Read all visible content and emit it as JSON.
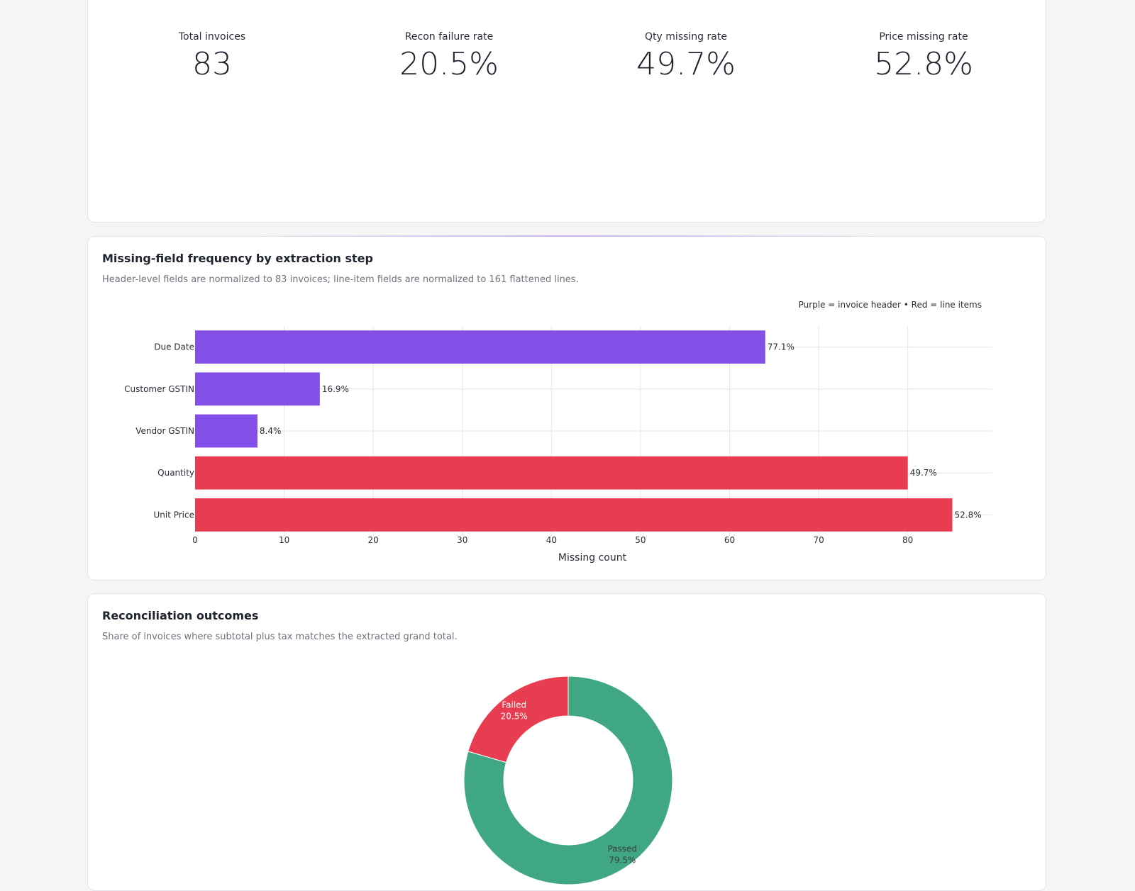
{
  "kpis": [
    {
      "label": "Total invoices",
      "value": "83"
    },
    {
      "label": "Recon failure rate",
      "value": "20.5%"
    },
    {
      "label": "Qty missing rate",
      "value": "49.7%"
    },
    {
      "label": "Price missing rate",
      "value": "52.8%"
    }
  ],
  "bar_section": {
    "title": "Missing-field frequency by extraction step",
    "subtitle": "Header-level fields are normalized to 83 invoices; line-item fields are normalized to 161 flattened lines."
  },
  "donut_section": {
    "title": "Reconciliation outcomes",
    "subtitle": "Share of invoices where subtotal plus tax matches the extracted grand total."
  },
  "chart_data": [
    {
      "type": "bar",
      "orientation": "horizontal",
      "categories": [
        "Due Date",
        "Customer GSTIN",
        "Vendor GSTIN",
        "Quantity",
        "Unit Price"
      ],
      "values": [
        64,
        14,
        7,
        80,
        85
      ],
      "data_labels": [
        "77.1%",
        "16.9%",
        "8.4%",
        "49.7%",
        "52.8%"
      ],
      "groups": [
        "header",
        "header",
        "header",
        "line",
        "line"
      ],
      "colors": {
        "header": "#8250e6",
        "line": "#e83c50"
      },
      "xlabel": "Missing count",
      "xlim": [
        0,
        89.5
      ],
      "xticks": [
        0,
        10,
        20,
        30,
        40,
        50,
        60,
        70,
        80
      ],
      "annotation": "Purple = invoice header • Red = line items",
      "grid": true
    },
    {
      "type": "pie",
      "hole": true,
      "slices": [
        {
          "label": "Passed",
          "value": 79.5,
          "text": "79.5%",
          "color": "#3fa882"
        },
        {
          "label": "Failed",
          "value": 20.5,
          "text": "20.5%",
          "color": "#e83c50"
        }
      ]
    }
  ]
}
